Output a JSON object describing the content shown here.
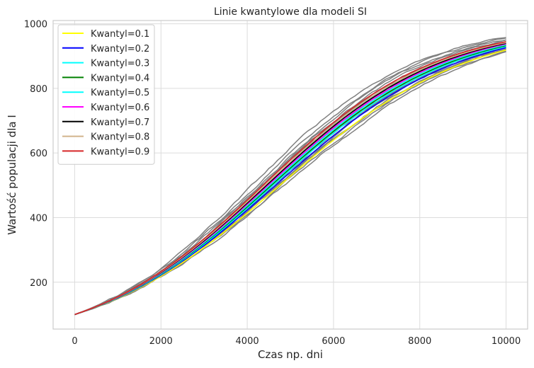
{
  "chart_data": {
    "type": "line",
    "title": "Linie kwantylowe dla modeli SI",
    "xlabel": "Czas np. dni",
    "ylabel": "Wartość populacji dla I",
    "xlim": [
      -500,
      10500
    ],
    "ylim": [
      55,
      1010
    ],
    "x_ticks": [
      0,
      2000,
      4000,
      6000,
      8000,
      10000
    ],
    "x_tick_labels": [
      "0",
      "2000",
      "4000",
      "6000",
      "8000",
      "10000"
    ],
    "y_ticks": [
      200,
      400,
      600,
      800,
      1000
    ],
    "y_tick_labels": [
      "200",
      "400",
      "600",
      "800",
      "1000"
    ],
    "grid": true,
    "legend_position": "upper-left",
    "model": {
      "type": "logistic",
      "N": 1000,
      "I0": 100,
      "x_end": 10000
    },
    "simulation_paths": {
      "color": "#808080",
      "rates": [
        0.000452,
        0.000458,
        0.000463,
        0.000467,
        0.00047,
        0.000473,
        0.000476,
        0.000479,
        0.000482,
        0.000485,
        0.000488,
        0.000491,
        0.000495,
        0.000499,
        0.000503,
        0.000508,
        0.000514,
        0.000522,
        0.000532
      ]
    },
    "series": [
      {
        "name": "Kwantyl=0.1",
        "color": "#ffff00",
        "rate": 0.000462
      },
      {
        "name": "Kwantyl=0.2",
        "color": "#0000ff",
        "rate": 0.000472
      },
      {
        "name": "Kwantyl=0.3",
        "color": "#00ffff",
        "rate": 0.000478
      },
      {
        "name": "Kwantyl=0.4",
        "color": "#008000",
        "rate": 0.000482
      },
      {
        "name": "Kwantyl=0.5",
        "color": "#00ffff",
        "rate": 0.000486
      },
      {
        "name": "Kwantyl=0.6",
        "color": "#ff00ff",
        "rate": 0.00049
      },
      {
        "name": "Kwantyl=0.7",
        "color": "#000000",
        "rate": 0.000494
      },
      {
        "name": "Kwantyl=0.8",
        "color": "#d2b48c",
        "rate": 0.000498
      },
      {
        "name": "Kwantyl=0.9",
        "color": "#d62728",
        "rate": 0.000503
      }
    ]
  }
}
